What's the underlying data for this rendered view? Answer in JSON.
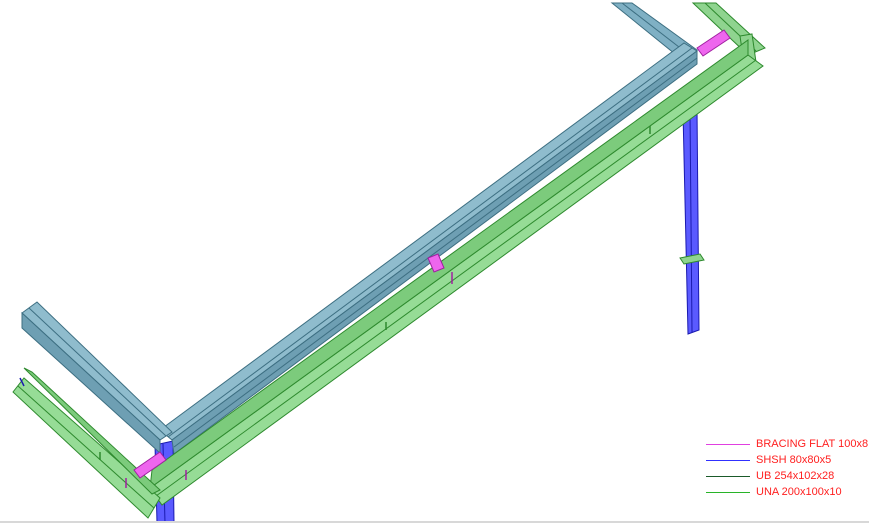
{
  "legend": {
    "items": [
      {
        "label": "BRACING FLAT 100x8",
        "color": "#e040e0"
      },
      {
        "label": "SHSH 80x80x5",
        "color": "#3030ff"
      },
      {
        "label": "UB 254x102x28",
        "color": "#1a5a2a"
      },
      {
        "label": "UNA 200x100x10",
        "color": "#28b428"
      }
    ]
  },
  "colors": {
    "ub_fill": "#7fb0c4",
    "ub_stroke": "#3d6f82",
    "una_fill": "#8fd48f",
    "una_stroke": "#2e8a2e",
    "shs_fill": "#5a5aff",
    "shs_stroke": "#1a1ab0",
    "bracing_fill": "#ee66ee",
    "bracing_stroke": "#a020a0"
  }
}
